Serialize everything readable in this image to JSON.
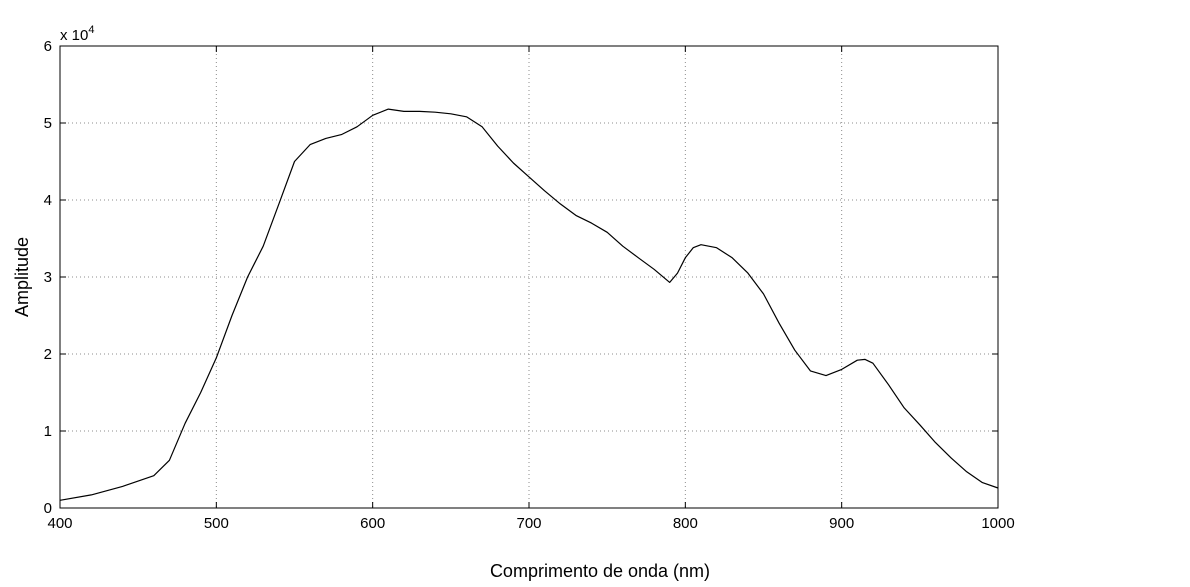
{
  "chart_data": {
    "type": "line",
    "title": "",
    "xlabel": "Comprimento de onda (nm)",
    "ylabel": "Amplitude",
    "y_multiplier_label": "x 10",
    "y_multiplier_exponent": "4",
    "xlim": [
      400,
      1000
    ],
    "ylim": [
      0,
      6
    ],
    "grid": true,
    "legend": "none",
    "x_ticks": [
      400,
      500,
      600,
      700,
      800,
      900,
      1000
    ],
    "x_tick_labels": [
      "400",
      "500",
      "600",
      "700",
      "800",
      "900",
      "1000"
    ],
    "y_ticks": [
      0,
      1,
      2,
      3,
      4,
      5,
      6
    ],
    "y_tick_labels": [
      "0",
      "1",
      "2",
      "3",
      "4",
      "5",
      "6"
    ],
    "series": [
      {
        "color": "#000000",
        "x": [
          400,
          420,
          440,
          460,
          470,
          480,
          490,
          500,
          510,
          520,
          530,
          540,
          550,
          560,
          570,
          580,
          590,
          600,
          610,
          620,
          630,
          640,
          650,
          660,
          670,
          680,
          690,
          700,
          710,
          720,
          730,
          740,
          750,
          760,
          770,
          780,
          790,
          795,
          800,
          805,
          810,
          820,
          830,
          840,
          850,
          860,
          870,
          880,
          890,
          900,
          910,
          915,
          920,
          930,
          940,
          950,
          960,
          970,
          980,
          990,
          1000
        ],
        "y": [
          0.1,
          0.17,
          0.28,
          0.42,
          0.62,
          1.1,
          1.5,
          1.95,
          2.5,
          3.0,
          3.4,
          3.95,
          4.5,
          4.72,
          4.8,
          4.85,
          4.95,
          5.1,
          5.18,
          5.15,
          5.15,
          5.14,
          5.12,
          5.08,
          4.95,
          4.7,
          4.48,
          4.3,
          4.12,
          3.95,
          3.8,
          3.7,
          3.58,
          3.4,
          3.25,
          3.1,
          2.93,
          3.05,
          3.25,
          3.38,
          3.42,
          3.38,
          3.25,
          3.05,
          2.78,
          2.4,
          2.05,
          1.78,
          1.72,
          1.8,
          1.92,
          1.93,
          1.88,
          1.6,
          1.3,
          1.08,
          0.85,
          0.65,
          0.47,
          0.33,
          0.26
        ]
      }
    ]
  }
}
